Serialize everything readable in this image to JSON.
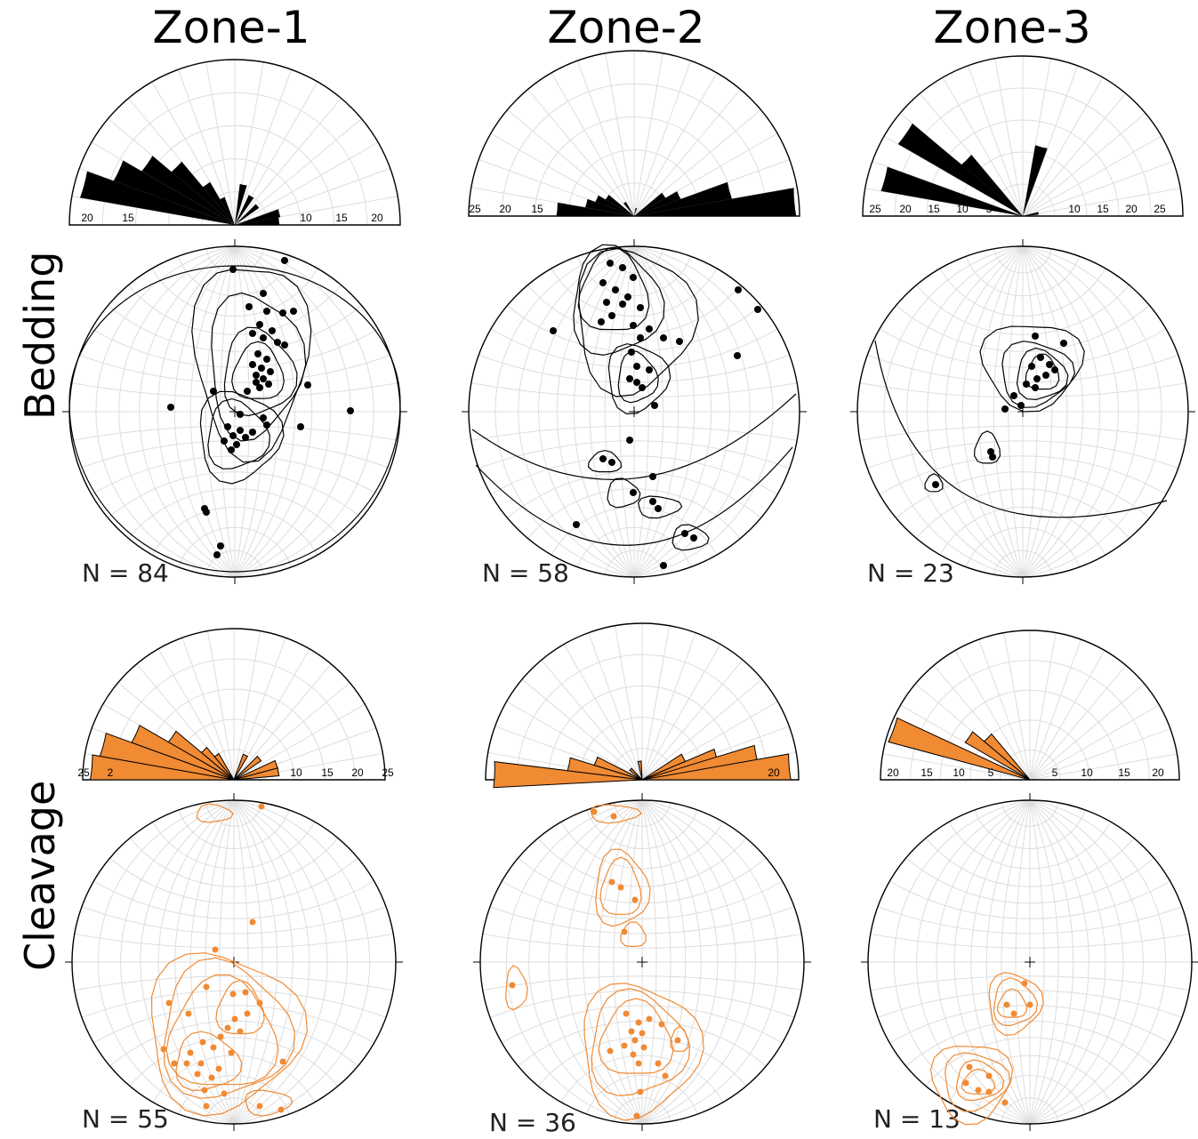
{
  "zones": [
    {
      "title": "Zone-1",
      "bedding_count": "N = 84",
      "cleavage_count": "N = 55"
    },
    {
      "title": "Zone-2",
      "bedding_count": "N = 58",
      "cleavage_count": "N = 36"
    },
    {
      "title": "Zone-3",
      "bedding_count": "N = 23",
      "cleavage_count": "N = 13"
    }
  ],
  "rows": {
    "bedding": "Bedding",
    "cleavage": "Cleavage"
  },
  "colors": {
    "bedding": "#000000",
    "cleavage": "#f08a33",
    "grid": "#dddddd"
  },
  "rose_ticks": {
    "bedding_1": [
      "20",
      "15",
      "10",
      "15",
      "20"
    ],
    "bedding_2": [
      "25",
      "20",
      "15"
    ],
    "bedding_3": [
      "25",
      "20",
      "15",
      "10",
      "5",
      "10",
      "15",
      "20",
      "25"
    ],
    "cleavage_1": [
      "25",
      "2",
      "10",
      "15",
      "20",
      "25"
    ],
    "cleavage_2": [
      "20"
    ],
    "cleavage_3": [
      "20",
      "15",
      "10",
      "5",
      "5",
      "10",
      "15",
      "20"
    ]
  }
}
